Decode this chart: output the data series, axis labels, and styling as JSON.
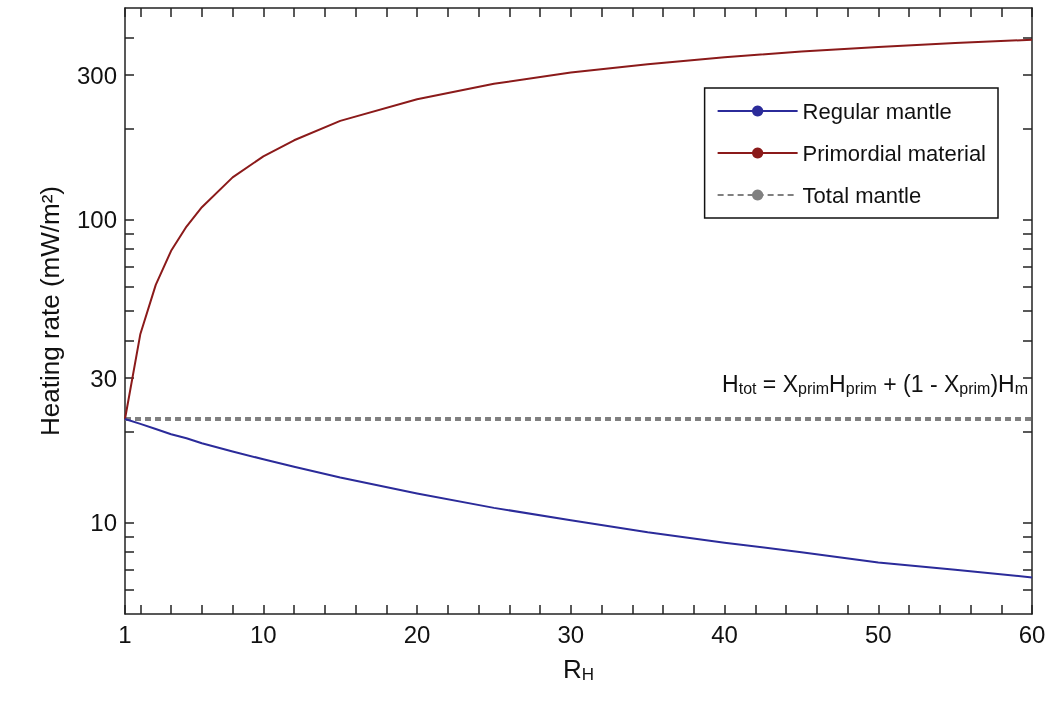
{
  "chart_data": {
    "type": "line",
    "xlabel": "R$_{H}$",
    "ylabel": "Heating rate (mW/m²)",
    "log": "y",
    "xlim": [
      1,
      60
    ],
    "ylim": [
      5,
      500
    ],
    "xticks": [
      1,
      {
        "value": 2,
        "label": null
      },
      {
        "value": 4,
        "label": null
      },
      {
        "value": 6,
        "label": null
      },
      {
        "value": 8,
        "label": null
      },
      10,
      {
        "value": 12,
        "label": null
      },
      {
        "value": 14,
        "label": null
      },
      {
        "value": 16,
        "label": null
      },
      {
        "value": 18,
        "label": null
      },
      20,
      {
        "value": 22,
        "label": null
      },
      {
        "value": 24,
        "label": null
      },
      {
        "value": 26,
        "label": null
      },
      {
        "value": 28,
        "label": null
      },
      30,
      {
        "value": 32,
        "label": null
      },
      {
        "value": 34,
        "label": null
      },
      {
        "value": 36,
        "label": null
      },
      {
        "value": 38,
        "label": null
      },
      40,
      {
        "value": 42,
        "label": null
      },
      {
        "value": 44,
        "label": null
      },
      {
        "value": 46,
        "label": null
      },
      {
        "value": 48,
        "label": null
      },
      50,
      {
        "value": 52,
        "label": null
      },
      {
        "value": 54,
        "label": null
      },
      {
        "value": 56,
        "label": null
      },
      {
        "value": 58,
        "label": null
      },
      60
    ],
    "yticks": [
      {
        "value": 6,
        "label": null
      },
      {
        "value": 7,
        "label": null
      },
      {
        "value": 8,
        "label": null
      },
      {
        "value": 9,
        "label": null
      },
      10,
      {
        "value": 20,
        "label": null
      },
      30,
      {
        "value": 40,
        "label": null
      },
      {
        "value": 50,
        "label": null
      },
      {
        "value": 60,
        "label": null
      },
      {
        "value": 70,
        "label": null
      },
      {
        "value": 80,
        "label": null
      },
      {
        "value": 90,
        "label": null
      },
      100,
      {
        "value": 200,
        "label": null
      },
      300,
      {
        "value": 400,
        "label": null
      }
    ],
    "x": [
      1,
      2,
      3,
      4,
      5,
      6,
      8,
      10,
      12,
      15,
      20,
      25,
      30,
      35,
      40,
      45,
      50,
      55,
      60
    ],
    "series": [
      {
        "name": "Regular mantle",
        "color": "#2b2b9a",
        "line_style": "solid",
        "values": [
          22,
          21.2,
          20.4,
          19.6,
          19,
          18.3,
          17.2,
          16.2,
          15.3,
          14.1,
          12.5,
          11.2,
          10.2,
          9.3,
          8.6,
          8,
          7.4,
          7,
          6.6
        ]
      },
      {
        "name": "Primordial material",
        "color": "#8b1a1a",
        "line_style": "solid",
        "values": [
          22,
          42,
          61,
          79,
          95,
          110,
          138,
          162,
          183,
          212,
          250,
          281,
          306,
          326,
          344,
          359,
          372,
          383,
          393
        ]
      },
      {
        "name": "Total mantle",
        "color": "#808080",
        "line_style": "dashed",
        "x": [
          1,
          60
        ],
        "values": [
          22,
          22
        ]
      }
    ],
    "legend": "top right",
    "marker": "none",
    "grid": false,
    "annotations": [
      "H$_{tot}$ = X$_{prim}$H$_{prim}$ + (1 - X$_{prim}$)H$_{m}$"
    ]
  }
}
